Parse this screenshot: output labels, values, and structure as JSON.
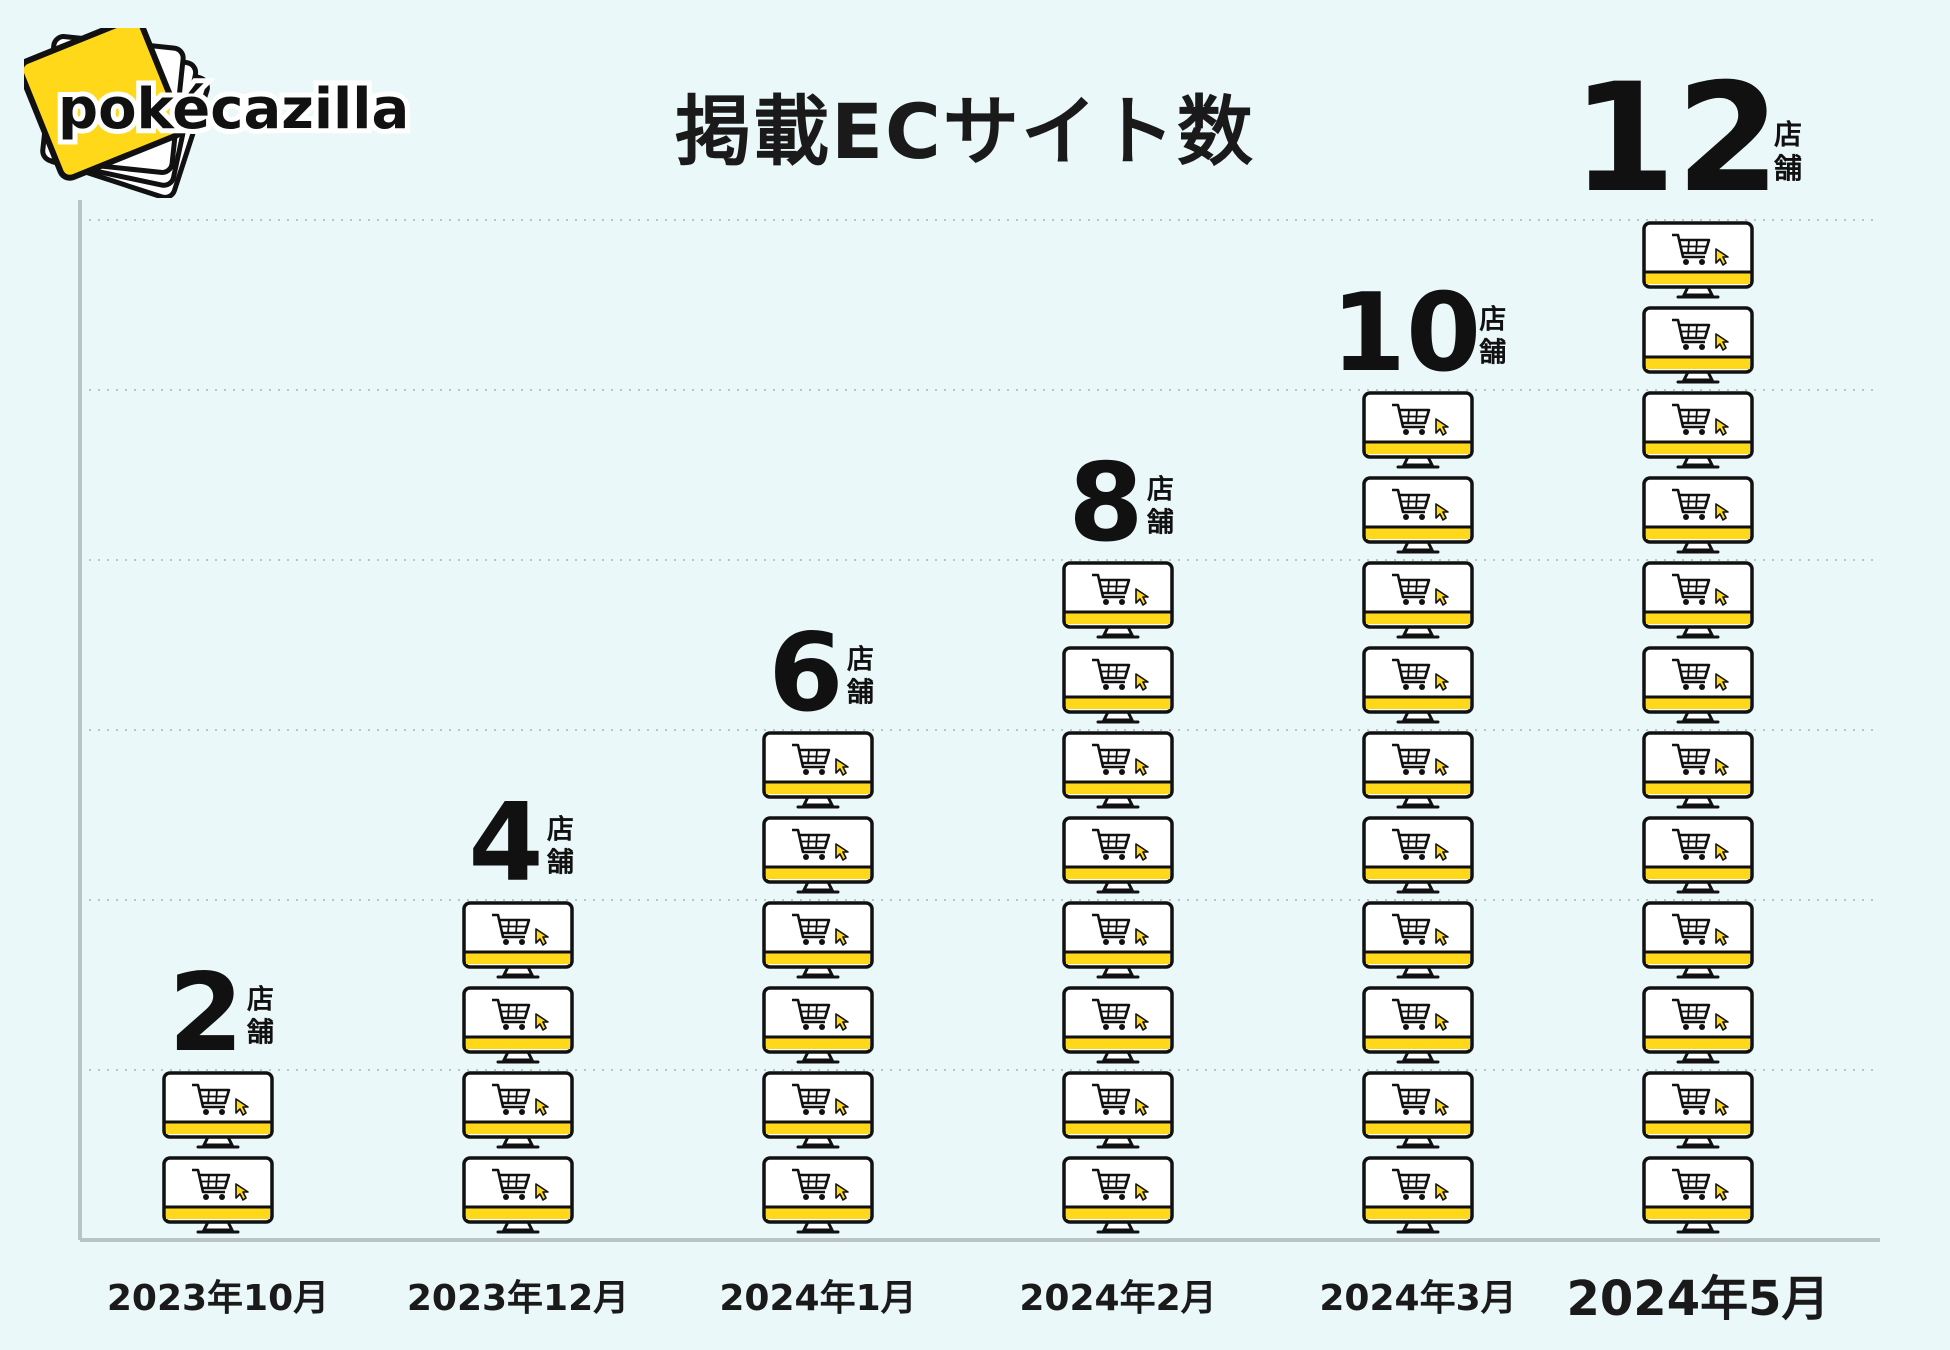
{
  "logo": {
    "text": "pokécazilla",
    "brand_color": "#ffd81a"
  },
  "colors": {
    "background": "#eaf8fa",
    "accent": "#ffd81a",
    "ink": "#111111",
    "grid": "#b8c6c8"
  },
  "chart_data": {
    "type": "bar",
    "title": "掲載ECサイト数",
    "unit": "店舗",
    "icon": "computer-with-shopping-cart-icon",
    "categories": [
      "2023年10月",
      "2023年12月",
      "2024年1月",
      "2024年2月",
      "2024年3月",
      "2024年5月"
    ],
    "values": [
      2,
      4,
      6,
      8,
      10,
      12
    ],
    "ylim": [
      0,
      12
    ],
    "grid": true,
    "xlabel": "",
    "ylabel": ""
  }
}
